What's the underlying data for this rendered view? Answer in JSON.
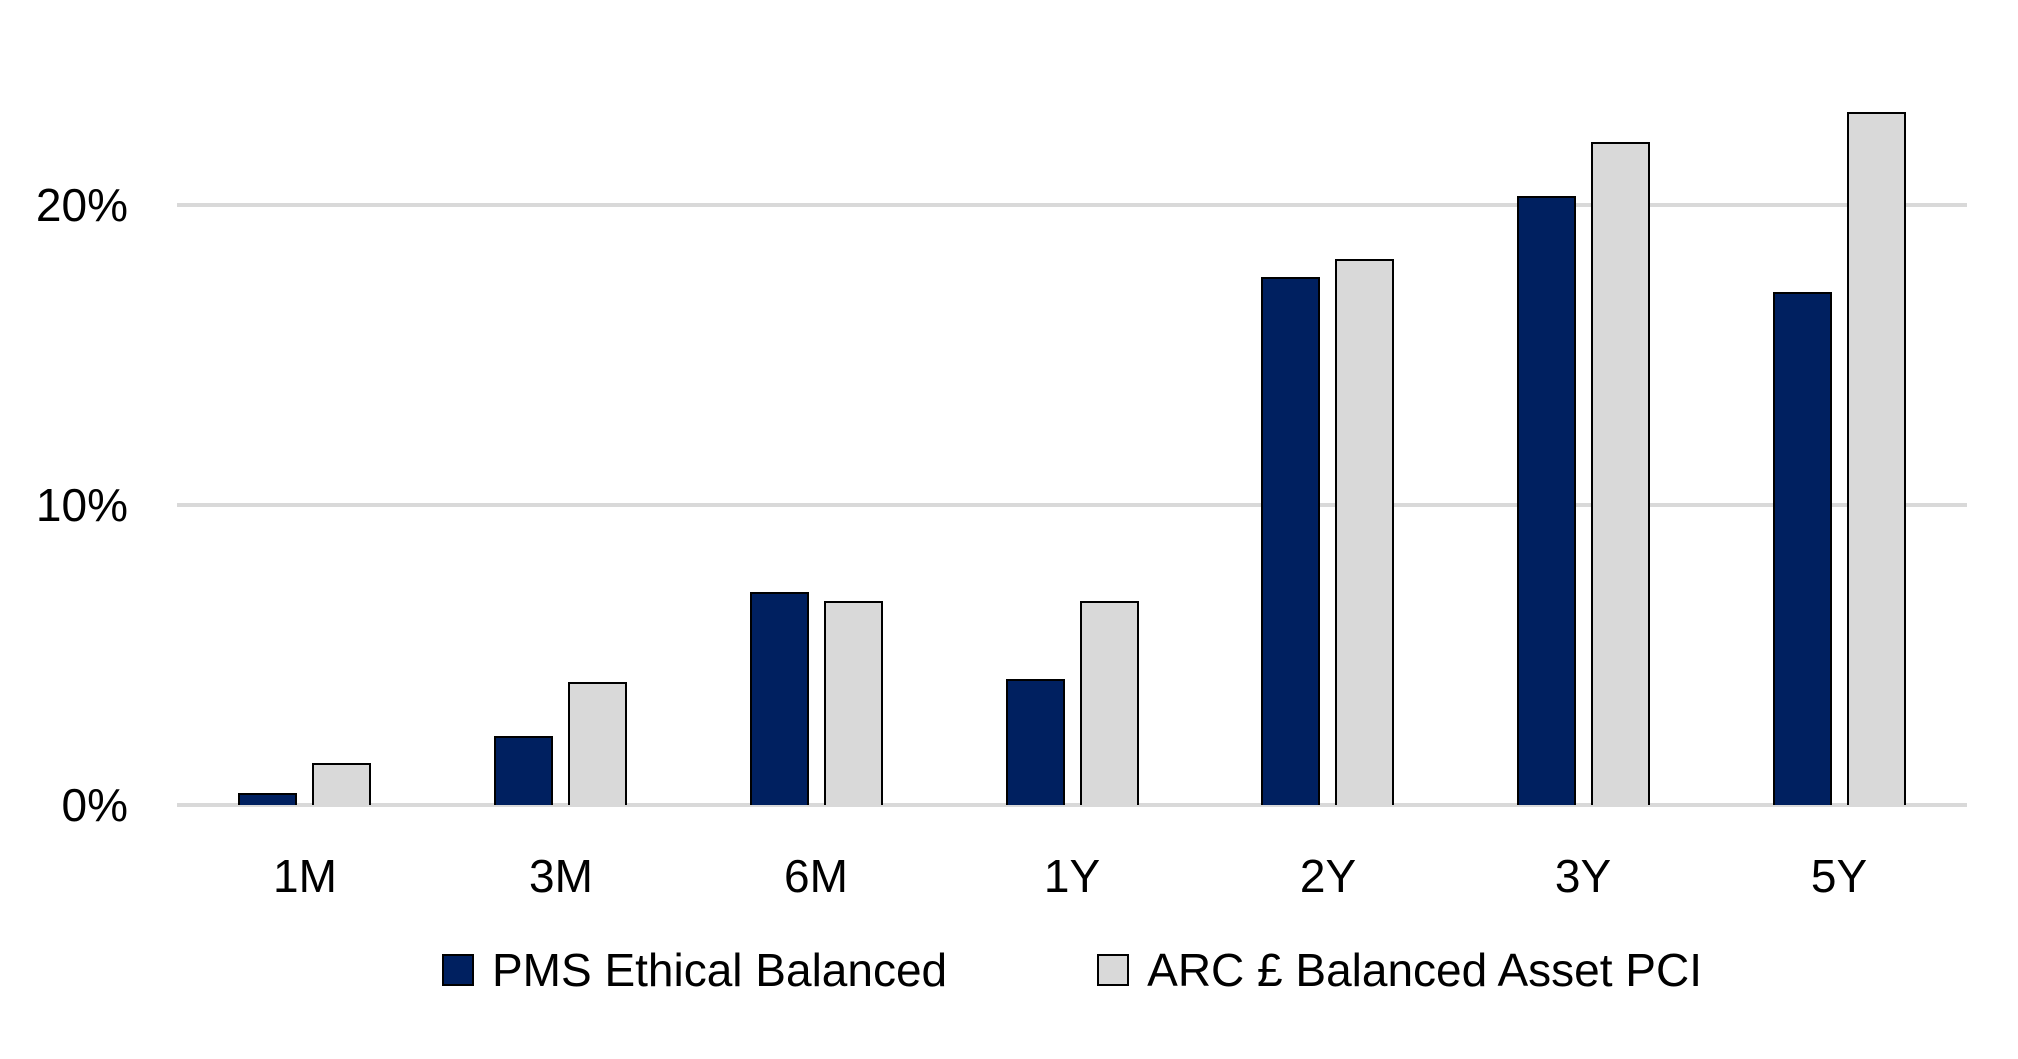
{
  "chart_data": {
    "type": "bar",
    "title": "",
    "categories": [
      "1M",
      "3M",
      "6M",
      "1Y",
      "2Y",
      "3Y",
      "5Y"
    ],
    "series": [
      {
        "name": "PMS Ethical Balanced",
        "color": "#002060",
        "values": [
          0.4,
          2.3,
          7.1,
          4.2,
          17.6,
          20.3,
          17.1
        ]
      },
      {
        "name": "ARC £ Balanced Asset PCI",
        "color": "#D9D9D9",
        "values": [
          1.4,
          4.1,
          6.8,
          6.8,
          18.2,
          22.1,
          23.1
        ]
      }
    ],
    "xlabel": "",
    "ylabel": "",
    "y_ticks": [
      {
        "label": "0%",
        "value": 0
      },
      {
        "label": "10%",
        "value": 10
      },
      {
        "label": "20%",
        "value": 20
      }
    ],
    "ylim": [
      0,
      24
    ],
    "grid": true,
    "gridline_color": "#D9D9D9",
    "bar_border_color": "#000000",
    "text_color": "#000000",
    "legend_position": "bottom"
  }
}
